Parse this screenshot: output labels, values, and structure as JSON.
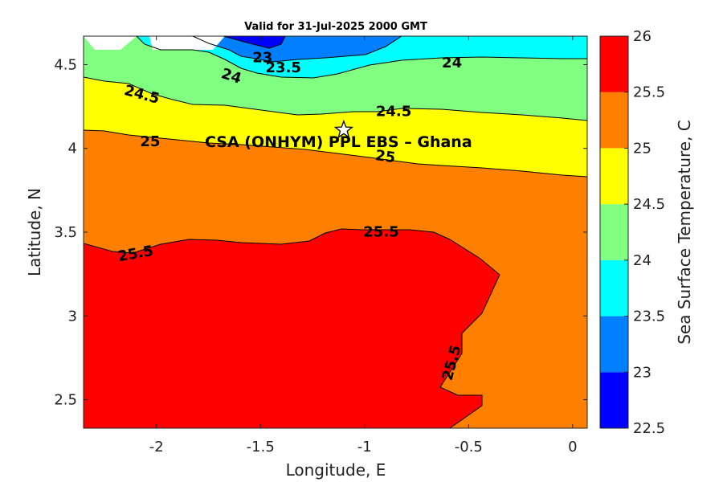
{
  "chart_data": {
    "type": "heatmap",
    "title": "Valid for 31-Jul-2025 2000 GMT",
    "xlabel": "Longitude, E",
    "ylabel": "Latitude, N",
    "xlim": [
      -2.35,
      0.07
    ],
    "ylim": [
      2.33,
      4.67
    ],
    "x_ticks": [
      -2,
      -1.5,
      -1,
      -0.5,
      0
    ],
    "x_tick_labels": [
      "-2",
      "-1.5",
      "-1",
      "-0.5",
      "0"
    ],
    "y_ticks": [
      2.5,
      3,
      3.5,
      4,
      4.5
    ],
    "y_tick_labels": [
      "2.5",
      "3",
      "3.5",
      "4",
      "4.5"
    ],
    "colorbar": {
      "label": "Sea Surface Temperature, C",
      "levels": [
        22.5,
        23,
        23.5,
        24,
        24.5,
        25,
        25.5,
        26
      ],
      "tick_labels": [
        "22.5",
        "23",
        "23.5",
        "24",
        "24.5",
        "25",
        "25.5",
        "26"
      ],
      "colors": [
        "#0000ff",
        "#0080ff",
        "#00ffff",
        "#80ff80",
        "#ffff00",
        "#ff8000",
        "#ff0000"
      ]
    },
    "contour_labels": [
      {
        "text": "23",
        "lon": -1.49,
        "lat": 4.54
      },
      {
        "text": "23.5",
        "lon": -1.39,
        "lat": 4.48
      },
      {
        "text": "24",
        "lon": -1.64,
        "lat": 4.43
      },
      {
        "text": "24",
        "lon": -0.58,
        "lat": 4.51
      },
      {
        "text": "24.5",
        "lon": -2.07,
        "lat": 4.32
      },
      {
        "text": "24.5",
        "lon": -0.86,
        "lat": 4.22
      },
      {
        "text": "25",
        "lon": -2.03,
        "lat": 4.04
      },
      {
        "text": "25",
        "lon": -0.9,
        "lat": 3.95
      },
      {
        "text": "25.5",
        "lon": -2.1,
        "lat": 3.37
      },
      {
        "text": "25.5",
        "lon": -0.92,
        "lat": 3.5
      },
      {
        "text": "25.5",
        "lon": -0.58,
        "lat": 2.72
      }
    ],
    "site": {
      "label": "CSA (ONHYM) PPL EBS  – Ghana",
      "lon": -1.1,
      "lat": 4.11
    }
  }
}
